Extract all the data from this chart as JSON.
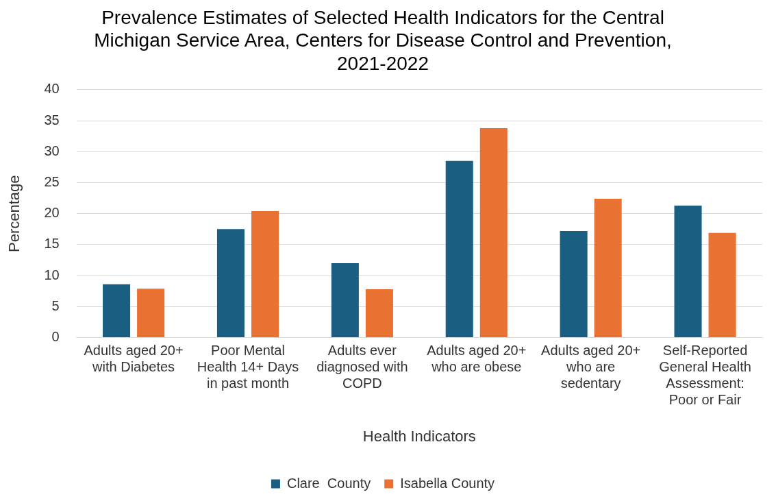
{
  "chart_data": {
    "type": "bar",
    "title": "Prevalence Estimates of Selected Health Indicators for the Central Michigan Service Area, Centers for Disease Control and Prevention, 2021-2022",
    "xlabel": "Health Indicators",
    "ylabel": "Percentage",
    "categories": [
      "Adults aged 20+ with Diabetes",
      "Poor Mental Health 14+ Days in past month",
      "Adults ever diagnosed with COPD",
      "Adults aged 20+ who are obese",
      "Adults aged 20+ who are sedentary",
      "Self-Reported General Health Assessment: Poor or Fair"
    ],
    "series": [
      {
        "name": "Clare  County",
        "color": "#1a5f82",
        "values": [
          8.6,
          17.5,
          12.0,
          28.5,
          17.2,
          21.3
        ]
      },
      {
        "name": "Isabella County",
        "color": "#e97132",
        "values": [
          7.9,
          20.4,
          7.8,
          33.8,
          22.4,
          16.9
        ]
      }
    ],
    "ylim": [
      0,
      40
    ],
    "yticks": [
      0,
      5,
      10,
      15,
      20,
      25,
      30,
      35,
      40
    ],
    "grid": "y",
    "legend": "bottom"
  }
}
